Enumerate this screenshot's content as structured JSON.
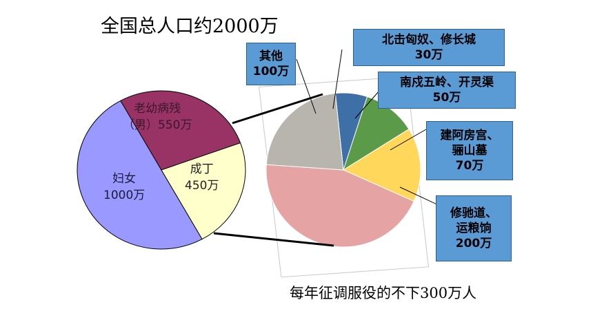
{
  "title": "全国总人口约2000万",
  "caption": "每年征调服役的不下300万人",
  "chart_data": [
    {
      "type": "pie",
      "title": "全国总人口约2000万",
      "slices": [
        {
          "label_lines": [
            "妇女",
            "1000万"
          ],
          "value": 1000,
          "color": "#9999ff"
        },
        {
          "label_lines": [
            "老幼病残",
            "（男）550万"
          ],
          "value": 550,
          "color": "#993366"
        },
        {
          "label_lines": [
            "成丁",
            "450万"
          ],
          "value": 450,
          "color": "#ffffcc"
        }
      ]
    },
    {
      "type": "pie",
      "title": "每年征调服役的不下300万人",
      "slices": [
        {
          "label_lines": [
            "北击匈奴、修长城",
            "30万"
          ],
          "value": 30,
          "color": "#3f6fa7"
        },
        {
          "label_lines": [
            "南戍五岭、开灵渠",
            "50万"
          ],
          "value": 50,
          "color": "#5b9a48"
        },
        {
          "label_lines": [
            "建阿房宫、",
            "骊山墓",
            "70万"
          ],
          "value": 70,
          "color": "#ffd75a"
        },
        {
          "label_lines": [
            "修驰道、",
            "运粮饷",
            "200万"
          ],
          "value": 200,
          "color": "#e6a3a3"
        },
        {
          "label_lines": [
            "其他",
            "100万"
          ],
          "value": 100,
          "color": "#b7b5ad"
        }
      ]
    }
  ]
}
